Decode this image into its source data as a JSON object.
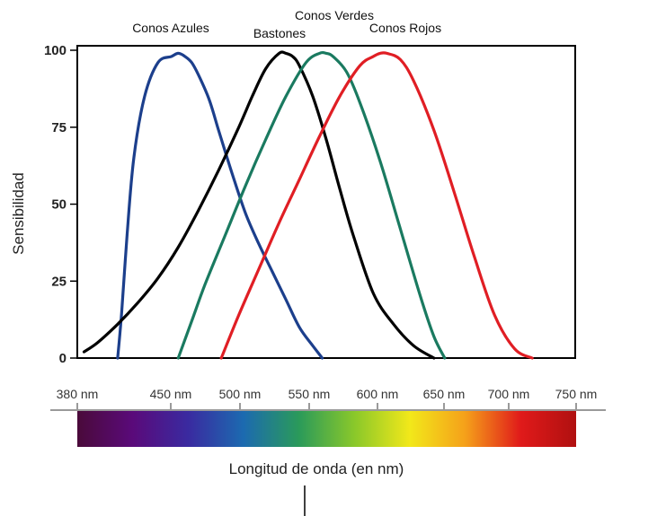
{
  "chart_data": {
    "type": "line",
    "title": "",
    "xlabel": "Longitud de onda (en nm)",
    "ylabel": "Sensibilidad",
    "xlim": [
      380,
      750
    ],
    "ylim": [
      0,
      100
    ],
    "yticks": [
      "0",
      "25",
      "50",
      "75",
      "100"
    ],
    "xticks": [
      {
        "value": 380,
        "label": "380 nm"
      },
      {
        "value": 450,
        "label": "450 nm"
      },
      {
        "value": 500,
        "label": "500 nm"
      },
      {
        "value": 550,
        "label": "550 nm"
      },
      {
        "value": 600,
        "label": "600 nm"
      },
      {
        "value": 650,
        "label": "650 nm"
      },
      {
        "value": 700,
        "label": "700 nm"
      },
      {
        "value": 750,
        "label": "750 nm"
      }
    ],
    "series": [
      {
        "name": "Conos Azules",
        "color": "#1c3f8c",
        "x": [
          410,
          413,
          417,
          422,
          430,
          440,
          450,
          455,
          460,
          465,
          470,
          478,
          485,
          495,
          505,
          515,
          525,
          535,
          545,
          555,
          562
        ],
        "y": [
          0,
          15,
          40,
          65,
          85,
          96,
          98,
          99,
          98,
          96,
          92,
          84,
          74,
          60,
          47,
          37,
          28,
          19,
          10,
          4,
          0
        ]
      },
      {
        "name": "Bastones",
        "color": "#000000",
        "x": [
          385,
          395,
          410,
          425,
          440,
          455,
          470,
          485,
          500,
          510,
          520,
          530,
          535,
          540,
          545,
          555,
          565,
          575,
          585,
          600,
          615,
          630,
          645
        ],
        "y": [
          2,
          5,
          11,
          18,
          26,
          36,
          48,
          61,
          75,
          85,
          94,
          99,
          99,
          98,
          95,
          85,
          71,
          55,
          40,
          21,
          11,
          4,
          0
        ]
      },
      {
        "name": "Conos Verdes",
        "color": "#1a7a60",
        "x": [
          455,
          465,
          475,
          490,
          505,
          520,
          535,
          550,
          560,
          565,
          570,
          580,
          590,
          605,
          620,
          635,
          645,
          653
        ],
        "y": [
          0,
          12,
          24,
          40,
          56,
          71,
          85,
          96,
          99,
          99,
          98,
          93,
          83,
          64,
          42,
          20,
          7,
          0
        ]
      },
      {
        "name": "Conos Rojos",
        "color": "#e01e24",
        "x": [
          487,
          500,
          515,
          530,
          545,
          560,
          575,
          590,
          600,
          605,
          610,
          620,
          630,
          645,
          660,
          675,
          690,
          705,
          718
        ],
        "y": [
          0,
          14,
          29,
          44,
          58,
          72,
          85,
          95,
          98,
          99,
          99,
          97,
          90,
          74,
          54,
          33,
          14,
          3,
          0
        ]
      }
    ],
    "legend": "labels above curves",
    "grid": false
  },
  "spectrum_bar": {
    "gradient_colors": [
      "#4a0a3a",
      "#5a0a7a",
      "#3a2aa0",
      "#1c6ab0",
      "#2a9a5a",
      "#8ac82a",
      "#f2e81a",
      "#f5a01a",
      "#e01a1a",
      "#b01010"
    ]
  }
}
